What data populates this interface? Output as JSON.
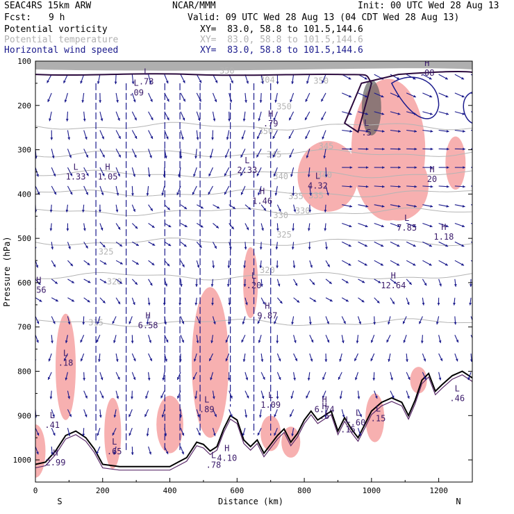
{
  "header": {
    "model": "SEAC4RS 15km ARW",
    "org": "NCAR/MMM",
    "init": "Init: 00 UTC Wed 28 Aug 13",
    "fcst_label": "Fcst:",
    "fcst_value": "9 h",
    "valid": "Valid: 09 UTC Wed 28 Aug 13 (04 CDT Wed 28 Aug 13)",
    "fields": [
      {
        "name": "Potential vorticity",
        "xy": "XY=  83.0, 58.8 to 101.5,144.6",
        "color": "#000000"
      },
      {
        "name": "Potential temperature",
        "xy": "XY=  83.0, 58.8 to 101.5,144.6",
        "color": "#b0b0b0"
      },
      {
        "name": "Horizontal wind speed",
        "xy": "XY=  83.0, 58.8 to 101.5,144.6",
        "color": "#1a1a8c"
      }
    ]
  },
  "chart_data": {
    "type": "cross-section",
    "xlabel": "Distance (km)",
    "ylabel": "Pressure (hPa)",
    "xlim": [
      0,
      1300
    ],
    "ylim": [
      1050,
      100
    ],
    "x_ticks": [
      "0",
      "200",
      "400",
      "600",
      "800",
      "1000",
      "1200"
    ],
    "x_tick_values": [
      0,
      200,
      400,
      600,
      800,
      1000,
      1200
    ],
    "y_ticks": [
      "100",
      "200",
      "300",
      "400",
      "500",
      "600",
      "700",
      "800",
      "900",
      "1000"
    ],
    "y_tick_values": [
      100,
      200,
      300,
      400,
      500,
      600,
      700,
      800,
      900,
      1000
    ],
    "south_label": "S",
    "north_label": "N",
    "colors": {
      "theta": "#b4b4b4",
      "pv": "#2b0a3d",
      "pv_shade": "#f7b0b0",
      "wind": "#1a1a8c",
      "terrain": "#000000"
    },
    "theta_levels": [
      {
        "label": "315",
        "p": 690
      },
      {
        "label": "320",
        "p": 585
      },
      {
        "label": "325",
        "p": 508
      },
      {
        "label": "330",
        "p": 440
      },
      {
        "label": "335",
        "p": 398
      },
      {
        "label": "340",
        "p": 355
      },
      {
        "label": "345",
        "p": 308
      },
      {
        "label": "350",
        "p": 247
      }
    ],
    "theta_labels": [
      {
        "text": "315",
        "x": 180,
        "p": 690
      },
      {
        "text": "320",
        "x": 235,
        "p": 598
      },
      {
        "text": "320",
        "x": 690,
        "p": 572
      },
      {
        "text": "325",
        "x": 210,
        "p": 530
      },
      {
        "text": "325",
        "x": 740,
        "p": 492
      },
      {
        "text": "330",
        "x": 730,
        "p": 448
      },
      {
        "text": "330",
        "x": 795,
        "p": 438
      },
      {
        "text": "335",
        "x": 775,
        "p": 405
      },
      {
        "text": "335",
        "x": 835,
        "p": 403
      },
      {
        "text": "340",
        "x": 730,
        "p": 360
      },
      {
        "text": "340",
        "x": 860,
        "p": 357
      },
      {
        "text": "345",
        "x": 710,
        "p": 311
      },
      {
        "text": "345",
        "x": 865,
        "p": 292
      },
      {
        "text": "350",
        "x": 685,
        "p": 258
      },
      {
        "text": "350",
        "x": 740,
        "p": 203
      },
      {
        "text": "350",
        "x": 850,
        "p": 145
      },
      {
        "text": "350",
        "x": 570,
        "p": 122
      },
      {
        "text": "304",
        "x": 690,
        "p": 142
      }
    ],
    "extrema": [
      {
        "type": "L",
        "value": ".73",
        "x": 330,
        "p": 140
      },
      {
        "type": "L",
        "value": ".09",
        "x": 300,
        "p": 165
      },
      {
        "type": "H",
        "value": ".79",
        "x": 700,
        "p": 235
      },
      {
        "type": "L",
        "value": "1.33",
        "x": 120,
        "p": 355
      },
      {
        "type": "H",
        "value": "1.05",
        "x": 215,
        "p": 355
      },
      {
        "type": "L",
        "value": "2.33",
        "x": 630,
        "p": 340
      },
      {
        "type": "H",
        "value": "1.46",
        "x": 675,
        "p": 410
      },
      {
        "type": "L",
        "value": "4.32",
        "x": 840,
        "p": 375
      },
      {
        "type": "L",
        "value": "7.85",
        "x": 1105,
        "p": 470
      },
      {
        "type": "H",
        "value": "1.18",
        "x": 1215,
        "p": 490
      },
      {
        "type": "H",
        "value": "12.64",
        "x": 1065,
        "p": 600
      },
      {
        "type": "L",
        "value": ".20",
        "x": 650,
        "p": 600
      },
      {
        "type": "H",
        "value": "9.87",
        "x": 690,
        "p": 668
      },
      {
        "type": "H",
        "value": "6.58",
        "x": 335,
        "p": 690
      },
      {
        "type": "H",
        "value": ".56",
        "x": 10,
        "p": 610
      },
      {
        "type": "L",
        "value": ".18",
        "x": 90,
        "p": 775
      },
      {
        "type": "L",
        "value": "1.09",
        "x": 700,
        "p": 870
      },
      {
        "type": "L",
        "value": ".89",
        "x": 510,
        "p": 880
      },
      {
        "type": "H",
        "value": "6.74",
        "x": 860,
        "p": 880
      },
      {
        "type": "H",
        "value": ".5",
        "x": 860,
        "p": 895
      },
      {
        "type": "L",
        "value": ".41",
        "x": 50,
        "p": 915
      },
      {
        "type": "L",
        "value": ".65",
        "x": 235,
        "p": 975
      },
      {
        "type": "H",
        "value": "2.99",
        "x": 60,
        "p": 1000
      },
      {
        "type": "H",
        "value": "4.10",
        "x": 570,
        "p": 990
      },
      {
        "type": "L",
        "value": ".78",
        "x": 530,
        "p": 1005
      },
      {
        "type": "L",
        "value": ".60",
        "x": 960,
        "p": 910
      },
      {
        "type": "L",
        "value": ".15",
        "x": 930,
        "p": 925
      },
      {
        "type": "L",
        "value": ".15",
        "x": 1020,
        "p": 900
      },
      {
        "type": "L",
        "value": ".46",
        "x": 1255,
        "p": 855
      },
      {
        "type": "L",
        "value": ".5",
        "x": 985,
        "p": 255
      },
      {
        "type": "H",
        "value": "20",
        "x": 1180,
        "p": 360
      },
      {
        "type": "H",
        "value": ".08",
        "x": 1165,
        "p": 120
      }
    ],
    "terrain": [
      [
        0,
        1010
      ],
      [
        30,
        1005
      ],
      [
        60,
        980
      ],
      [
        90,
        945
      ],
      [
        120,
        935
      ],
      [
        150,
        950
      ],
      [
        175,
        975
      ],
      [
        200,
        1010
      ],
      [
        250,
        1015
      ],
      [
        300,
        1015
      ],
      [
        350,
        1015
      ],
      [
        400,
        1015
      ],
      [
        450,
        995
      ],
      [
        480,
        960
      ],
      [
        500,
        965
      ],
      [
        520,
        980
      ],
      [
        540,
        970
      ],
      [
        560,
        930
      ],
      [
        580,
        900
      ],
      [
        600,
        910
      ],
      [
        620,
        955
      ],
      [
        640,
        970
      ],
      [
        660,
        955
      ],
      [
        680,
        985
      ],
      [
        700,
        965
      ],
      [
        720,
        945
      ],
      [
        740,
        930
      ],
      [
        760,
        960
      ],
      [
        780,
        940
      ],
      [
        800,
        910
      ],
      [
        820,
        890
      ],
      [
        840,
        910
      ],
      [
        860,
        900
      ],
      [
        880,
        890
      ],
      [
        900,
        935
      ],
      [
        920,
        905
      ],
      [
        940,
        930
      ],
      [
        960,
        950
      ],
      [
        980,
        920
      ],
      [
        1000,
        890
      ],
      [
        1030,
        870
      ],
      [
        1060,
        860
      ],
      [
        1090,
        870
      ],
      [
        1110,
        900
      ],
      [
        1130,
        865
      ],
      [
        1150,
        820
      ],
      [
        1170,
        805
      ],
      [
        1190,
        845
      ],
      [
        1210,
        830
      ],
      [
        1240,
        810
      ],
      [
        1270,
        800
      ],
      [
        1300,
        815
      ]
    ]
  }
}
